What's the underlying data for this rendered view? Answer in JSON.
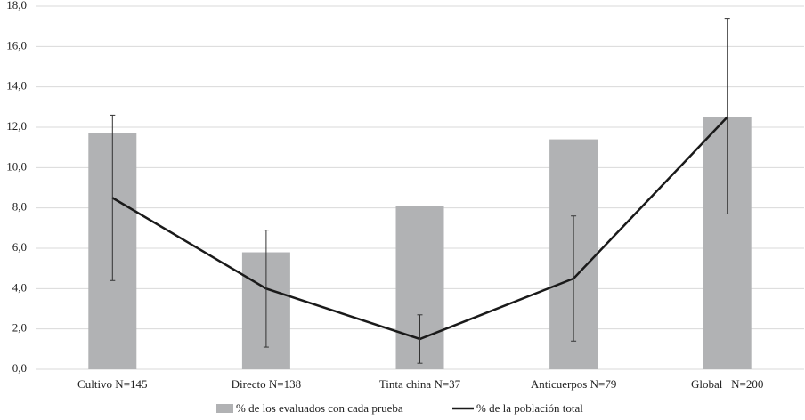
{
  "chart_data": {
    "type": "bar-line",
    "categories": [
      "Cultivo N=145",
      "Directo N=138",
      "Tinta china N=37",
      "Anticuerpos N=79",
      "Global   N=200"
    ],
    "series": [
      {
        "name": "% de los evaluados con cada prueba",
        "type": "bar",
        "color": "#b1b2b4",
        "values": [
          11.7,
          5.8,
          8.1,
          11.4,
          12.5
        ]
      },
      {
        "name": "% de la población total",
        "type": "line",
        "color": "#1a1a1a",
        "values": [
          8.5,
          4.0,
          1.5,
          4.5,
          12.5
        ],
        "lower": [
          4.4,
          1.1,
          0.3,
          1.4,
          7.7
        ],
        "upper": [
          12.6,
          6.9,
          2.7,
          7.6,
          17.4
        ]
      }
    ],
    "ylim": [
      0,
      18
    ],
    "yticks": [
      {
        "value": 0,
        "label": "0,0"
      },
      {
        "value": 2,
        "label": "2,0"
      },
      {
        "value": 4,
        "label": "4,0"
      },
      {
        "value": 6,
        "label": "6,0"
      },
      {
        "value": 8,
        "label": "8,0"
      },
      {
        "value": 10,
        "label": "10,0"
      },
      {
        "value": 12,
        "label": "12,0"
      },
      {
        "value": 14,
        "label": "14,0"
      },
      {
        "value": 16,
        "label": "16,0"
      },
      {
        "value": 18,
        "label": "18,0"
      }
    ],
    "grid": true,
    "legend": "bottom"
  }
}
